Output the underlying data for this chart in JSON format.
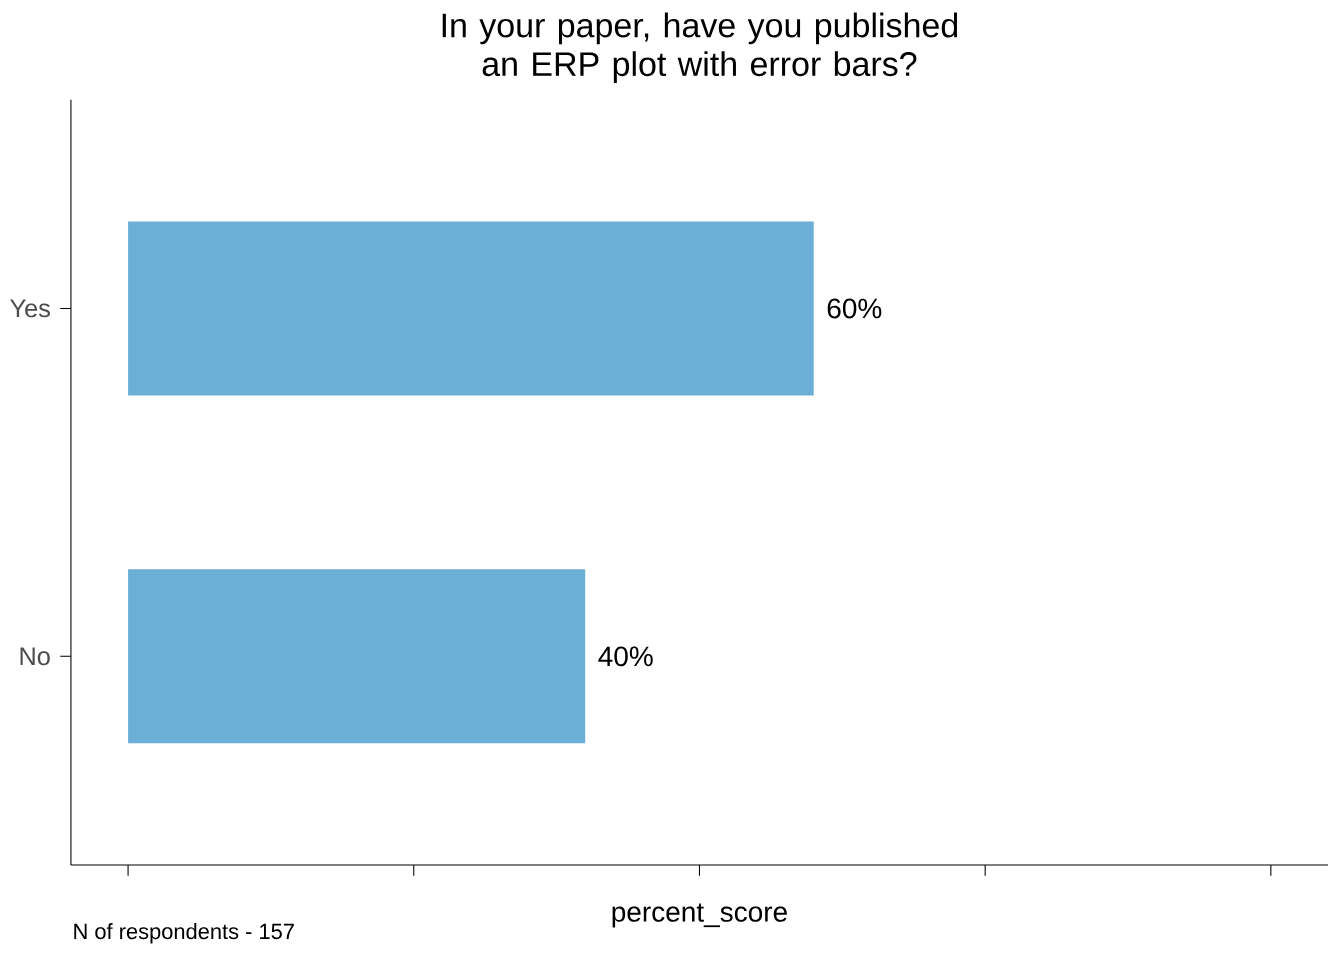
{
  "chart_data": {
    "type": "bar",
    "orientation": "horizontal",
    "title": "In your paper, have you published an ERP plot with error bars?",
    "categories": [
      "Yes",
      "No"
    ],
    "values": [
      60,
      40
    ],
    "color": "#6baed6",
    "value_labels": [
      "60%",
      "40%"
    ],
    "xlabel": "percent_score",
    "xlim": [
      -5,
      105
    ],
    "xticks": [
      {
        "value": 0,
        "label": null
      },
      {
        "value": 25,
        "label": null
      },
      {
        "value": 50,
        "label": null
      },
      {
        "value": 75,
        "label": null
      },
      {
        "value": 100,
        "label": null
      }
    ],
    "tick_labels": "y",
    "grid": false,
    "annotations": [
      "N of respondents - 157"
    ]
  }
}
